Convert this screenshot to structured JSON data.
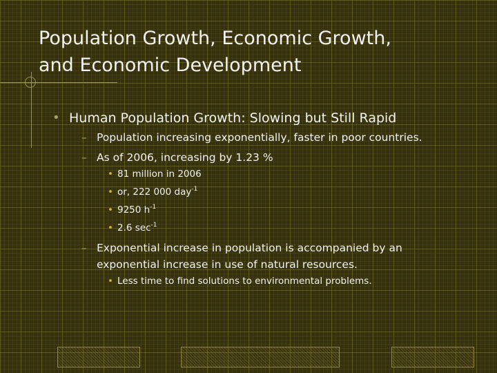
{
  "title": {
    "line1": "Population Growth, Economic Growth,",
    "line2": "and Economic Development"
  },
  "bullet": {
    "heading": "Human Population Growth: Slowing but Still Rapid",
    "sub1": "Population increasing exponentially, faster in poor countries.",
    "sub2": "As of 2006, increasing by 1.23 %",
    "sub2_items": {
      "i1": "81 million in 2006",
      "i2_text": "or, 222 000 day",
      "i2_sup": "-1",
      "i3_text": "9250 h",
      "i3_sup": "-1",
      "i4_text": "2.6 sec",
      "i4_sup": "-1"
    },
    "sub3_line1": "Exponential increase in population is accompanied by an",
    "sub3_line2": "exponential increase in use of natural resources.",
    "sub3_item": "Less time to find solutions to environmental problems."
  }
}
